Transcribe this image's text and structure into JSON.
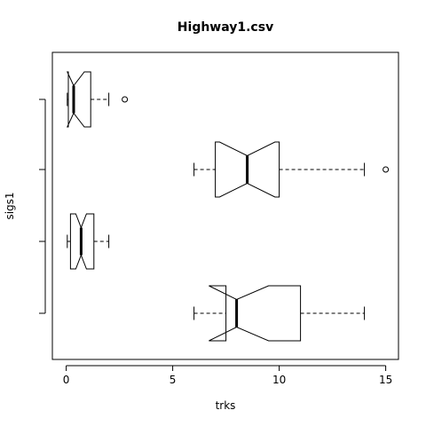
{
  "chart_data": {
    "type": "boxplot",
    "title": "Highway1.csv",
    "xlabel": "trks",
    "ylabel": "sigs1",
    "orientation": "horizontal",
    "notched": true,
    "xlim": [
      -0.6,
      15.4
    ],
    "xticks": [
      0,
      5,
      10,
      15
    ],
    "xtick_labels": [
      "0",
      "5",
      "10",
      "15"
    ],
    "boxes": [
      {
        "lower_whisker": 6.0,
        "q1": 7.5,
        "median": 8.0,
        "q3": 11.0,
        "upper_whisker": 14.0,
        "notch_low": 6.7,
        "notch_high": 9.5,
        "outliers": []
      },
      {
        "lower_whisker": 0.05,
        "q1": 0.2,
        "median": 0.7,
        "q3": 1.3,
        "upper_whisker": 2.0,
        "notch_low": 0.45,
        "notch_high": 0.95,
        "outliers": []
      },
      {
        "lower_whisker": 6.0,
        "q1": 7.0,
        "median": 8.5,
        "q3": 10.0,
        "upper_whisker": 14.0,
        "notch_low": 7.2,
        "notch_high": 9.8,
        "outliers": [
          15.0
        ]
      },
      {
        "lower_whisker": 0.05,
        "q1": 0.1,
        "median": 0.35,
        "q3": 1.15,
        "upper_whisker": 2.0,
        "notch_low": 0.05,
        "notch_high": 0.85,
        "outliers": [
          2.75
        ]
      }
    ]
  }
}
